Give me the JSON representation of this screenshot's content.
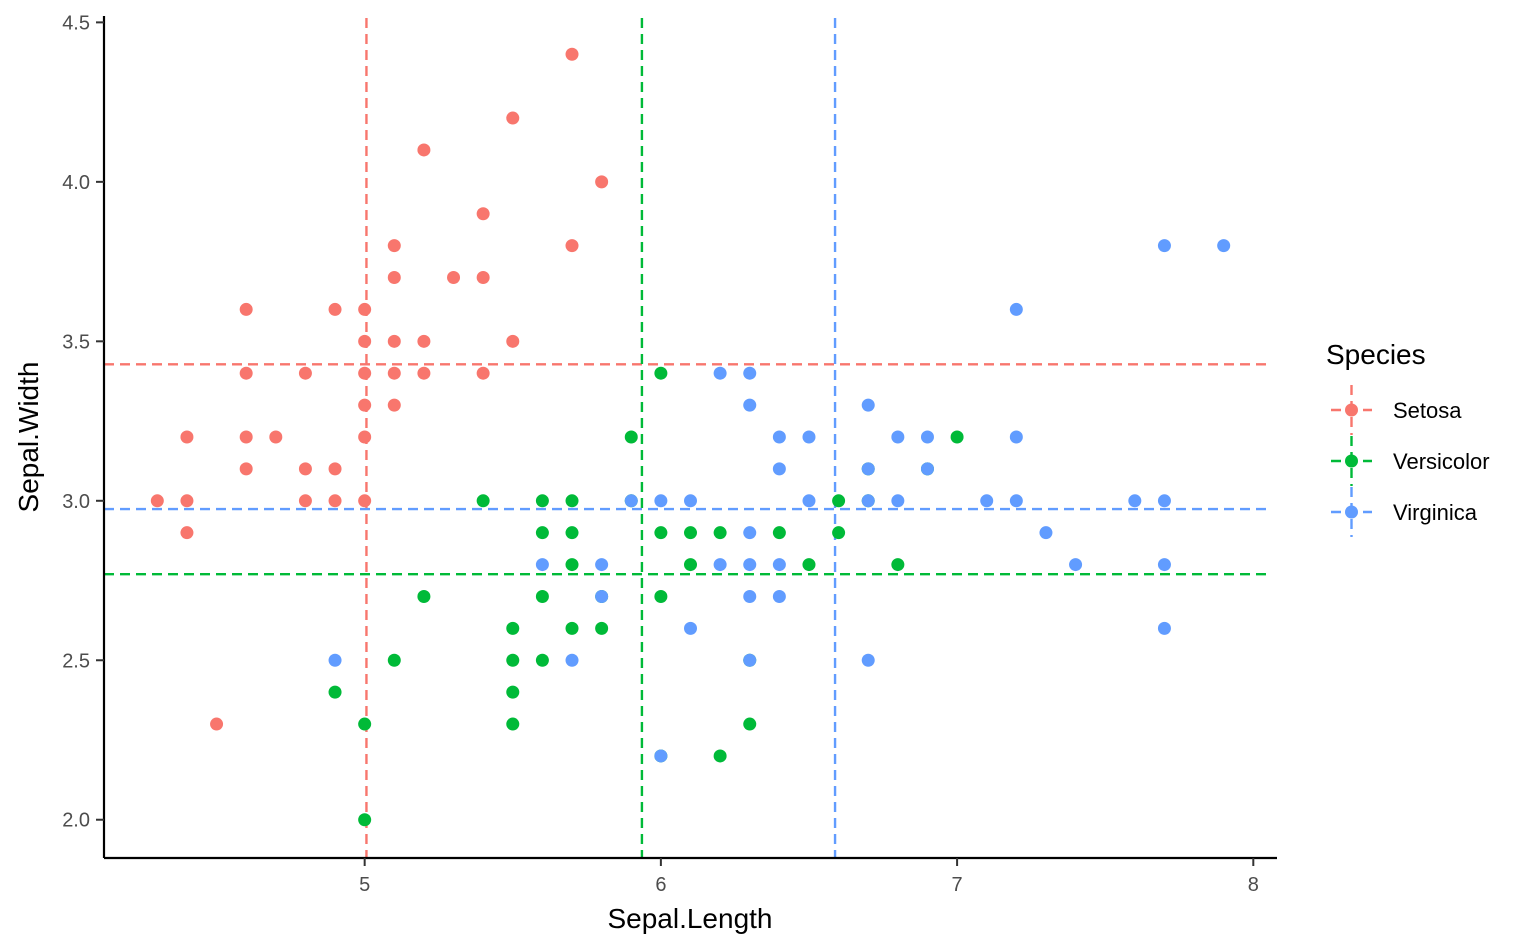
{
  "chart_data": {
    "type": "scatter",
    "title": "",
    "xlabel": "Sepal.Length",
    "ylabel": "Sepal.Width",
    "xlim": [
      4.12,
      8.08
    ],
    "ylim": [
      1.88,
      4.52
    ],
    "x_ticks": [
      5,
      6,
      7,
      8
    ],
    "y_ticks": [
      2.0,
      2.5,
      3.0,
      3.5,
      4.0,
      4.5
    ],
    "x_tick_labels": [
      "5",
      "6",
      "7",
      "8"
    ],
    "y_tick_labels": [
      "2.0",
      "2.5",
      "3.0",
      "3.5",
      "4.0",
      "4.5"
    ],
    "grid": false,
    "legend": {
      "title": "Species",
      "position": "right"
    },
    "series": [
      {
        "name": "Setosa",
        "color": "#F8766D",
        "mean_x": 5.006,
        "mean_y": 3.428,
        "points": [
          [
            4.3,
            3.0
          ],
          [
            4.4,
            3.2
          ],
          [
            4.4,
            3.0
          ],
          [
            4.4,
            2.9
          ],
          [
            4.5,
            2.3
          ],
          [
            4.6,
            3.6
          ],
          [
            4.6,
            3.4
          ],
          [
            4.6,
            3.2
          ],
          [
            4.6,
            3.1
          ],
          [
            4.7,
            3.2
          ],
          [
            4.8,
            3.4
          ],
          [
            4.8,
            3.1
          ],
          [
            4.8,
            3.0
          ],
          [
            4.9,
            3.6
          ],
          [
            4.9,
            3.1
          ],
          [
            4.9,
            3.0
          ],
          [
            5.0,
            3.6
          ],
          [
            5.0,
            3.5
          ],
          [
            5.0,
            3.4
          ],
          [
            5.0,
            3.3
          ],
          [
            5.0,
            3.2
          ],
          [
            5.0,
            3.0
          ],
          [
            5.1,
            3.8
          ],
          [
            5.1,
            3.7
          ],
          [
            5.1,
            3.5
          ],
          [
            5.1,
            3.4
          ],
          [
            5.1,
            3.3
          ],
          [
            5.2,
            4.1
          ],
          [
            5.2,
            3.5
          ],
          [
            5.2,
            3.4
          ],
          [
            5.3,
            3.7
          ],
          [
            5.4,
            3.9
          ],
          [
            5.4,
            3.7
          ],
          [
            5.4,
            3.4
          ],
          [
            5.5,
            4.2
          ],
          [
            5.5,
            3.5
          ],
          [
            5.7,
            4.4
          ],
          [
            5.7,
            3.8
          ],
          [
            5.8,
            4.0
          ]
        ]
      },
      {
        "name": "Versicolor",
        "color": "#00BA38",
        "mean_x": 5.936,
        "mean_y": 2.77,
        "points": [
          [
            4.9,
            2.4
          ],
          [
            5.0,
            2.3
          ],
          [
            5.0,
            2.0
          ],
          [
            5.1,
            2.5
          ],
          [
            5.2,
            2.7
          ],
          [
            5.4,
            3.0
          ],
          [
            5.5,
            2.6
          ],
          [
            5.5,
            2.5
          ],
          [
            5.5,
            2.4
          ],
          [
            5.5,
            2.3
          ],
          [
            5.6,
            3.0
          ],
          [
            5.6,
            2.9
          ],
          [
            5.6,
            2.7
          ],
          [
            5.6,
            2.5
          ],
          [
            5.7,
            3.0
          ],
          [
            5.7,
            2.9
          ],
          [
            5.7,
            2.8
          ],
          [
            5.7,
            2.6
          ],
          [
            5.8,
            2.7
          ],
          [
            5.8,
            2.6
          ],
          [
            5.9,
            3.2
          ],
          [
            5.9,
            3.0
          ],
          [
            6.0,
            3.4
          ],
          [
            6.0,
            2.9
          ],
          [
            6.0,
            2.7
          ],
          [
            6.0,
            2.2
          ],
          [
            6.1,
            2.9
          ],
          [
            6.1,
            2.8
          ],
          [
            6.2,
            2.9
          ],
          [
            6.2,
            2.2
          ],
          [
            6.3,
            2.5
          ],
          [
            6.3,
            2.3
          ],
          [
            6.4,
            2.9
          ],
          [
            6.5,
            2.8
          ],
          [
            6.6,
            3.0
          ],
          [
            6.6,
            2.9
          ],
          [
            6.7,
            3.1
          ],
          [
            6.7,
            3.0
          ],
          [
            6.8,
            2.8
          ],
          [
            6.9,
            3.1
          ],
          [
            7.0,
            3.2
          ]
        ]
      },
      {
        "name": "Virginica",
        "color": "#619CFF",
        "mean_x": 6.588,
        "mean_y": 2.974,
        "points": [
          [
            4.9,
            2.5
          ],
          [
            5.6,
            2.8
          ],
          [
            5.7,
            2.5
          ],
          [
            5.8,
            2.8
          ],
          [
            5.8,
            2.7
          ],
          [
            5.9,
            3.0
          ],
          [
            6.0,
            3.0
          ],
          [
            6.0,
            2.2
          ],
          [
            6.1,
            3.0
          ],
          [
            6.1,
            2.6
          ],
          [
            6.2,
            3.4
          ],
          [
            6.2,
            2.8
          ],
          [
            6.3,
            3.4
          ],
          [
            6.3,
            3.3
          ],
          [
            6.3,
            2.9
          ],
          [
            6.3,
            2.8
          ],
          [
            6.3,
            2.7
          ],
          [
            6.3,
            2.5
          ],
          [
            6.4,
            3.2
          ],
          [
            6.4,
            3.1
          ],
          [
            6.4,
            2.8
          ],
          [
            6.4,
            2.7
          ],
          [
            6.5,
            3.2
          ],
          [
            6.5,
            3.0
          ],
          [
            6.7,
            3.3
          ],
          [
            6.7,
            3.1
          ],
          [
            6.7,
            3.0
          ],
          [
            6.7,
            2.5
          ],
          [
            6.8,
            3.2
          ],
          [
            6.8,
            3.0
          ],
          [
            6.9,
            3.2
          ],
          [
            6.9,
            3.1
          ],
          [
            7.1,
            3.0
          ],
          [
            7.2,
            3.6
          ],
          [
            7.2,
            3.2
          ],
          [
            7.2,
            3.0
          ],
          [
            7.3,
            2.9
          ],
          [
            7.4,
            2.8
          ],
          [
            7.6,
            3.0
          ],
          [
            7.7,
            3.8
          ],
          [
            7.7,
            3.0
          ],
          [
            7.7,
            2.8
          ],
          [
            7.7,
            2.6
          ],
          [
            7.9,
            3.8
          ]
        ]
      }
    ]
  }
}
